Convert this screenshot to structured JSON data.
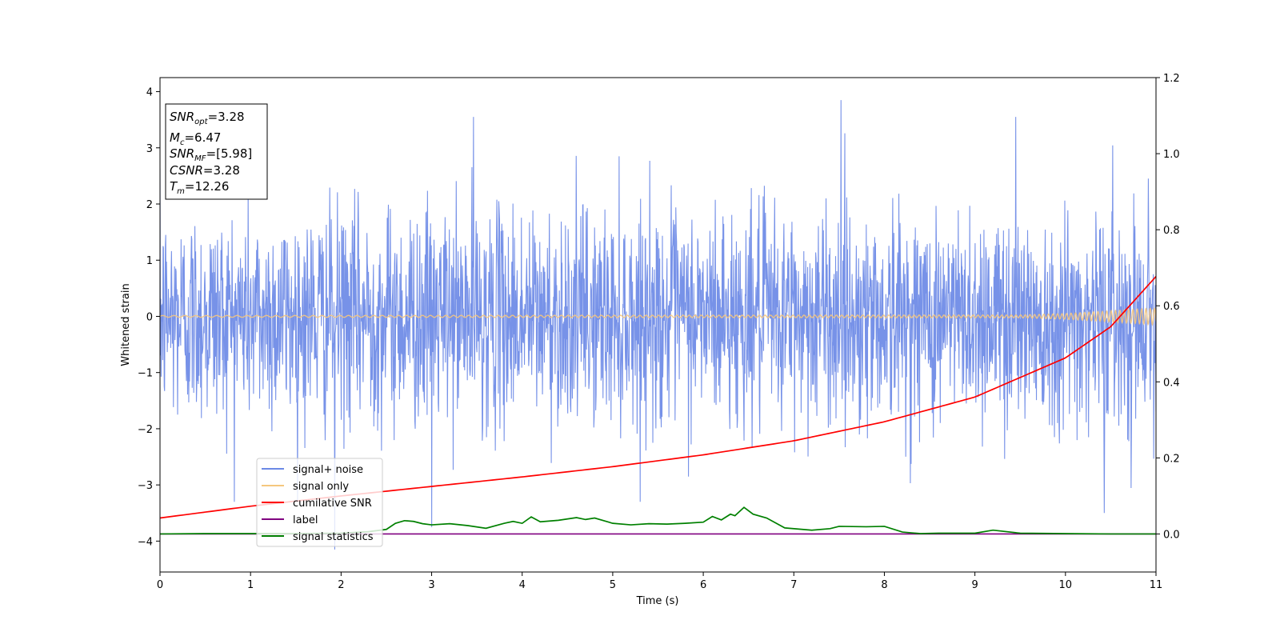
{
  "chart_data": {
    "type": "line",
    "xlabel": "Time (s)",
    "ylabel": "Whitened strain",
    "xlim": [
      0,
      11
    ],
    "ylim": [
      -4.55,
      4.25
    ],
    "y2lim": [
      -0.1,
      1.2
    ],
    "x_ticks": [
      0,
      1,
      2,
      3,
      4,
      5,
      6,
      7,
      8,
      9,
      10,
      11
    ],
    "y_ticks": [
      -4,
      -3,
      -2,
      -1,
      0,
      1,
      2,
      3,
      4
    ],
    "y_tick_labels": [
      "−4",
      "−3",
      "−2",
      "−1",
      "0",
      "1",
      "2",
      "3",
      "4"
    ],
    "y2_ticks": [
      0.0,
      0.2,
      0.4,
      0.6,
      0.8,
      1.0,
      1.2
    ],
    "y2_tick_labels": [
      "0.0",
      "0.2",
      "0.4",
      "0.6",
      "0.8",
      "1.0",
      "1.2"
    ],
    "legend_position": "lower-left",
    "series": [
      {
        "name": "signal+ noise",
        "axis": "left",
        "color": "#6b89e6",
        "style": "dense-noise",
        "approx_std": 0.95,
        "typical_range": [
          -2.5,
          2.6
        ],
        "extremes": [
          [
            1.93,
            -4.15
          ],
          [
            7.52,
            3.85
          ],
          [
            3.0,
            -3.75
          ],
          [
            10.43,
            -3.5
          ],
          [
            3.46,
            3.55
          ],
          [
            9.45,
            3.55
          ]
        ]
      },
      {
        "name": "signal only",
        "axis": "left",
        "color": "#f5c77e",
        "style": "chirp",
        "amplitude_envelope": {
          "x": [
            0,
            9.5,
            10.0,
            10.5,
            11
          ],
          "y": [
            0.015,
            0.025,
            0.05,
            0.1,
            0.15
          ]
        }
      },
      {
        "name": "cumilative SNR",
        "axis": "right",
        "color": "#ff0000",
        "x": [
          0,
          1,
          2,
          3,
          4,
          5,
          6,
          7,
          8,
          9,
          10,
          10.5,
          11
        ],
        "y": [
          0.042,
          0.073,
          0.1,
          0.125,
          0.15,
          0.177,
          0.208,
          0.245,
          0.295,
          0.36,
          0.463,
          0.545,
          0.677
        ]
      },
      {
        "name": "label",
        "axis": "right",
        "color": "#800080",
        "x": [
          0,
          11
        ],
        "y": [
          0.0,
          0.0
        ]
      },
      {
        "name": "signal statistics",
        "axis": "right",
        "color": "#008000",
        "x": [
          0,
          0.5,
          1,
          1.5,
          2,
          2.3,
          2.5,
          2.6,
          2.7,
          2.8,
          2.9,
          3,
          3.2,
          3.4,
          3.6,
          3.8,
          3.9,
          4,
          4.1,
          4.2,
          4.4,
          4.6,
          4.7,
          4.8,
          5,
          5.2,
          5.4,
          5.6,
          5.8,
          6,
          6.1,
          6.2,
          6.3,
          6.35,
          6.45,
          6.55,
          6.7,
          6.9,
          7.2,
          7.4,
          7.5,
          7.8,
          8,
          8.2,
          8.4,
          8.6,
          9,
          9.2,
          9.5,
          10,
          10.5,
          11
        ],
        "y": [
          0.0,
          0.001,
          0.001,
          0.001,
          0.002,
          0.006,
          0.012,
          0.028,
          0.035,
          0.033,
          0.027,
          0.024,
          0.027,
          0.022,
          0.015,
          0.028,
          0.033,
          0.028,
          0.045,
          0.032,
          0.036,
          0.043,
          0.038,
          0.042,
          0.028,
          0.024,
          0.027,
          0.026,
          0.028,
          0.031,
          0.046,
          0.037,
          0.052,
          0.048,
          0.07,
          0.052,
          0.042,
          0.016,
          0.01,
          0.014,
          0.02,
          0.019,
          0.02,
          0.005,
          0.001,
          0.002,
          0.002,
          0.01,
          0.002,
          0.001,
          0.0,
          0.0
        ]
      }
    ],
    "info_box": [
      {
        "base": "SNR",
        "sub": "opt",
        "value": "=3.28"
      },
      {
        "base": "M",
        "sub": "c",
        "value": "=6.47"
      },
      {
        "base": "SNR",
        "sub": "MF",
        "value": "=[5.98]"
      },
      {
        "base": "CSNR",
        "sub": "",
        "value": "=3.28"
      },
      {
        "base": "T",
        "sub": "m",
        "value": "=12.26"
      }
    ]
  }
}
